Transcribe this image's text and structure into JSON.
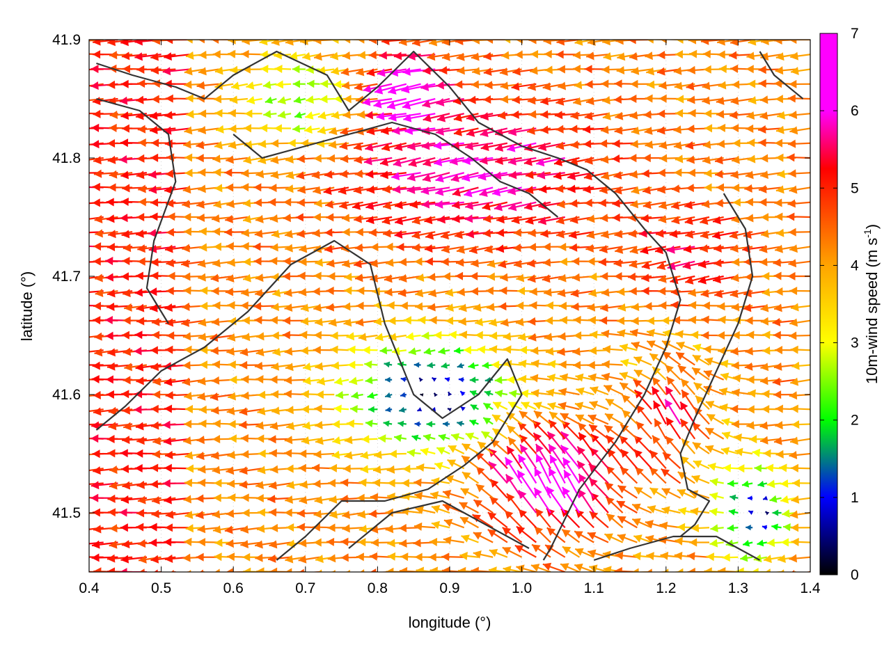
{
  "chart_data": {
    "type": "vector-field",
    "xlabel": "longitude (°)",
    "ylabel": "latitude (°)",
    "xlim": [
      0.4,
      1.4
    ],
    "ylim": [
      41.45,
      41.9
    ],
    "xticks": [
      "0.4",
      "0.5",
      "0.6",
      "0.7",
      "0.8",
      "0.9",
      "1.0",
      "1.1",
      "1.2",
      "1.3",
      "1.4"
    ],
    "yticks": [
      "41.5",
      "41.6",
      "41.7",
      "41.8",
      "41.9"
    ],
    "grid": true,
    "colorbar": {
      "label": "10m-wind speed (m s",
      "label_sup": "-1",
      "label_end": ")",
      "range": [
        0,
        7
      ],
      "ticks": [
        "0",
        "1",
        "2",
        "3",
        "4",
        "5",
        "6",
        "7"
      ],
      "colors": [
        "#000000",
        "#0000ff",
        "#00ff00",
        "#ffff00",
        "#ffa500",
        "#ff0000",
        "#ff00ff"
      ]
    },
    "contours": [
      [
        [
          0.41,
          41.88
        ],
        [
          0.46,
          41.87
        ],
        [
          0.52,
          41.86
        ],
        [
          0.56,
          41.85
        ],
        [
          0.6,
          41.87
        ],
        [
          0.66,
          41.89
        ],
        [
          0.73,
          41.87
        ],
        [
          0.76,
          41.84
        ],
        [
          0.8,
          41.86
        ],
        [
          0.85,
          41.89
        ],
        [
          0.9,
          41.86
        ],
        [
          0.94,
          41.83
        ],
        [
          1.0,
          41.81
        ],
        [
          1.05,
          41.8
        ],
        [
          1.09,
          41.79
        ],
        [
          1.13,
          41.77
        ],
        [
          1.17,
          41.74
        ],
        [
          1.2,
          41.72
        ],
        [
          1.22,
          41.68
        ],
        [
          1.2,
          41.64
        ],
        [
          1.17,
          41.6
        ],
        [
          1.13,
          41.56
        ],
        [
          1.08,
          41.52
        ],
        [
          1.04,
          41.47
        ],
        [
          1.03,
          41.46
        ]
      ],
      [
        [
          0.41,
          41.85
        ],
        [
          0.47,
          41.84
        ],
        [
          0.51,
          41.82
        ],
        [
          0.52,
          41.78
        ],
        [
          0.49,
          41.73
        ],
        [
          0.48,
          41.69
        ],
        [
          0.51,
          41.66
        ]
      ],
      [
        [
          0.41,
          41.57
        ],
        [
          0.45,
          41.59
        ],
        [
          0.5,
          41.62
        ],
        [
          0.56,
          41.64
        ],
        [
          0.62,
          41.67
        ],
        [
          0.68,
          41.71
        ],
        [
          0.74,
          41.73
        ],
        [
          0.79,
          41.71
        ],
        [
          0.81,
          41.66
        ],
        [
          0.83,
          41.63
        ],
        [
          0.85,
          41.6
        ],
        [
          0.89,
          41.58
        ],
        [
          0.94,
          41.6
        ],
        [
          0.98,
          41.63
        ],
        [
          1.0,
          41.6
        ],
        [
          0.96,
          41.56
        ],
        [
          0.92,
          41.54
        ],
        [
          0.87,
          41.52
        ],
        [
          0.81,
          41.51
        ],
        [
          0.75,
          41.51
        ],
        [
          0.7,
          41.48
        ],
        [
          0.66,
          41.46
        ]
      ],
      [
        [
          0.6,
          41.82
        ],
        [
          0.64,
          41.8
        ],
        [
          0.7,
          41.81
        ],
        [
          0.76,
          41.82
        ],
        [
          0.82,
          41.83
        ],
        [
          0.88,
          41.82
        ],
        [
          0.93,
          41.8
        ],
        [
          0.97,
          41.78
        ],
        [
          1.01,
          41.77
        ],
        [
          1.05,
          41.75
        ]
      ],
      [
        [
          0.76,
          41.47
        ],
        [
          0.82,
          41.5
        ],
        [
          0.89,
          41.51
        ],
        [
          0.95,
          41.49
        ],
        [
          1.01,
          41.47
        ]
      ],
      [
        [
          1.28,
          41.77
        ],
        [
          1.31,
          41.74
        ],
        [
          1.32,
          41.7
        ],
        [
          1.3,
          41.66
        ],
        [
          1.27,
          41.62
        ],
        [
          1.24,
          41.58
        ],
        [
          1.22,
          41.55
        ],
        [
          1.23,
          41.52
        ],
        [
          1.26,
          41.51
        ],
        [
          1.24,
          41.49
        ],
        [
          1.22,
          41.48
        ]
      ],
      [
        [
          1.1,
          41.46
        ],
        [
          1.15,
          41.47
        ],
        [
          1.21,
          41.48
        ],
        [
          1.27,
          41.48
        ],
        [
          1.33,
          41.46
        ]
      ],
      [
        [
          1.33,
          41.89
        ],
        [
          1.35,
          41.87
        ],
        [
          1.39,
          41.85
        ]
      ]
    ]
  }
}
